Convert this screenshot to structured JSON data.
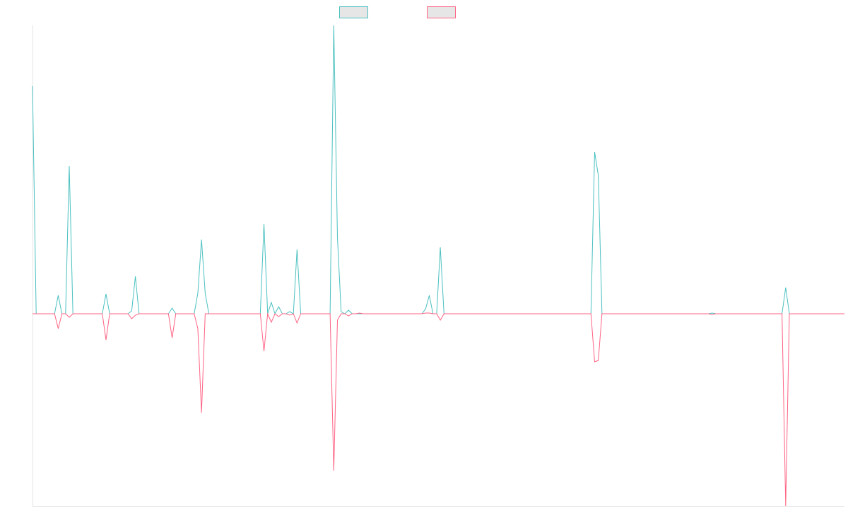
{
  "chart_data": {
    "type": "line",
    "series": [
      {
        "color": "#4bc0c0",
        "values": [
          322,
          0,
          0,
          0,
          0,
          0,
          0,
          26,
          0,
          0,
          209,
          0,
          0,
          0,
          0,
          0,
          0,
          0,
          0,
          0,
          28,
          0,
          0,
          0,
          0,
          0,
          0,
          4,
          53,
          0,
          0,
          0,
          0,
          0,
          0,
          0,
          0,
          0,
          8,
          0,
          0,
          0,
          0,
          0,
          0,
          29,
          105,
          29,
          0,
          0,
          0,
          0,
          0,
          0,
          0,
          0,
          0,
          0,
          0,
          0,
          0,
          0,
          0,
          127,
          0,
          16,
          0,
          10,
          0,
          0,
          3,
          0,
          91,
          0,
          0,
          0,
          0,
          0,
          0,
          0,
          0,
          0,
          408,
          108,
          3,
          0,
          5,
          0,
          0,
          0,
          0,
          0,
          0,
          0,
          0,
          0,
          0,
          0,
          0,
          0,
          0,
          0,
          0,
          0,
          0,
          0,
          0,
          7,
          26,
          0,
          0,
          94,
          0,
          0,
          0,
          0,
          0,
          0,
          0,
          0,
          0,
          0,
          0,
          0,
          0,
          0,
          0,
          0,
          0,
          0,
          0,
          0,
          0,
          0,
          0,
          0,
          0,
          0,
          0,
          0,
          0,
          0,
          0,
          0,
          0,
          0,
          0,
          0,
          0,
          0,
          0,
          0,
          0,
          229,
          196,
          0,
          0,
          0,
          0,
          0,
          0,
          0,
          0,
          0,
          0,
          0,
          0,
          0,
          0,
          0,
          0,
          0,
          0,
          0,
          0,
          0,
          0,
          0,
          0,
          0,
          0,
          0,
          0,
          0,
          0,
          1,
          0,
          0,
          0,
          0,
          0,
          0,
          0,
          0,
          0,
          0,
          0,
          0,
          0,
          0,
          0,
          0,
          0,
          0,
          0,
          37,
          0,
          0,
          0,
          0,
          0,
          0,
          0,
          0,
          0,
          0,
          0,
          0,
          0,
          0,
          0,
          0
        ]
      },
      {
        "color": "#ff6384",
        "values": [
          0,
          0,
          0,
          0,
          0,
          0,
          0,
          -21,
          0,
          0,
          -5,
          0,
          0,
          0,
          0,
          0,
          0,
          0,
          0,
          0,
          -37,
          0,
          0,
          0,
          0,
          0,
          0,
          -7,
          -2,
          0,
          0,
          0,
          0,
          0,
          0,
          0,
          0,
          0,
          -34,
          0,
          0,
          0,
          0,
          0,
          0,
          -21,
          -140,
          0,
          0,
          0,
          0,
          0,
          0,
          0,
          0,
          0,
          0,
          0,
          0,
          0,
          0,
          0,
          0,
          -53,
          0,
          -12,
          0,
          -4,
          0,
          0,
          -2,
          0,
          -13,
          0,
          0,
          0,
          0,
          0,
          0,
          0,
          0,
          0,
          -222,
          -9,
          0,
          0,
          -3,
          0,
          0,
          1,
          0,
          0,
          0,
          0,
          0,
          0,
          0,
          0,
          0,
          0,
          0,
          0,
          0,
          0,
          0,
          0,
          0,
          1,
          1,
          0,
          0,
          -9,
          0,
          0,
          0,
          0,
          0,
          0,
          0,
          0,
          0,
          0,
          0,
          0,
          0,
          0,
          0,
          0,
          0,
          0,
          0,
          0,
          0,
          0,
          0,
          0,
          0,
          0,
          0,
          0,
          0,
          0,
          0,
          0,
          0,
          0,
          0,
          0,
          0,
          0,
          0,
          0,
          0,
          -68,
          -66,
          0,
          0,
          0,
          0,
          0,
          0,
          0,
          0,
          0,
          0,
          0,
          0,
          0,
          0,
          0,
          0,
          0,
          0,
          0,
          0,
          0,
          0,
          0,
          0,
          0,
          0,
          0,
          0,
          0,
          0,
          -1,
          0,
          0,
          0,
          0,
          0,
          0,
          0,
          0,
          0,
          0,
          0,
          0,
          0,
          0,
          0,
          0,
          0,
          0,
          0,
          -272,
          0,
          0,
          0,
          0,
          0,
          0,
          0,
          0,
          0,
          0,
          0,
          0,
          0,
          0,
          0,
          0
        ]
      }
    ],
    "ylim": [
      -272,
      408
    ]
  }
}
